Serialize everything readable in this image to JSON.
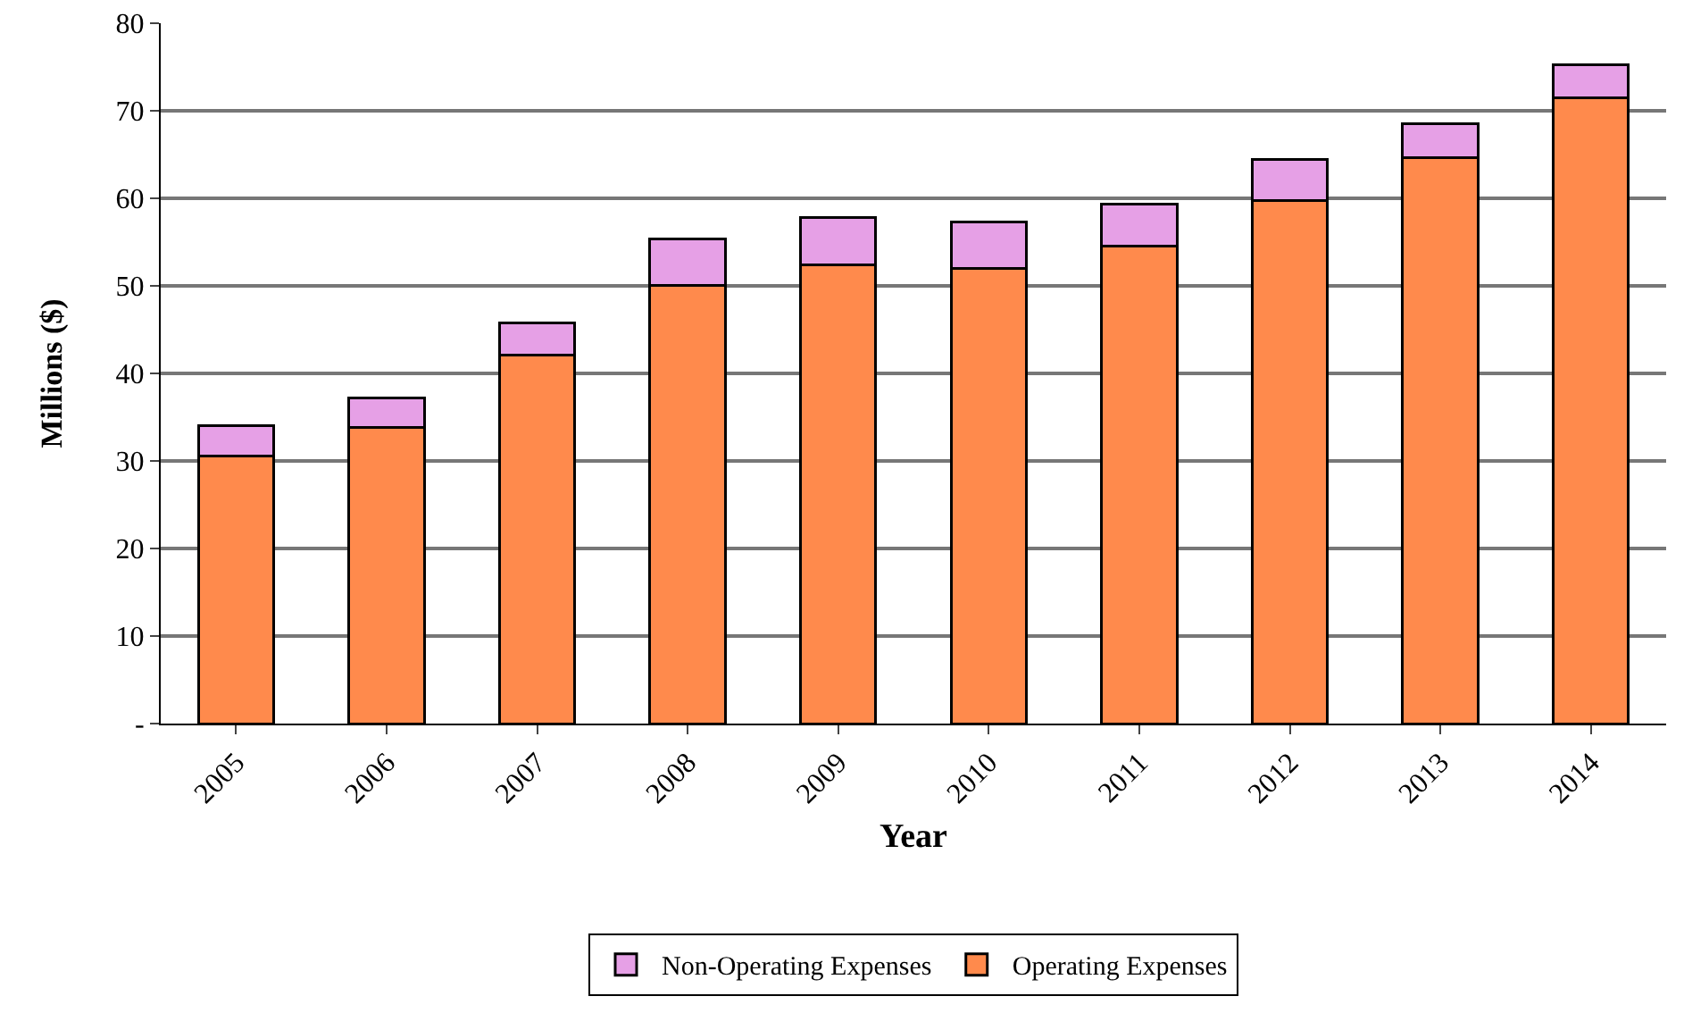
{
  "chart_data": {
    "type": "bar",
    "stacked": true,
    "xlabel": "Year",
    "ylabel": "Millions ($)",
    "categories": [
      "2005",
      "2006",
      "2007",
      "2008",
      "2009",
      "2010",
      "2011",
      "2012",
      "2013",
      "2014"
    ],
    "series": [
      {
        "name": "Operating Expenses",
        "color": "#ff8a4c",
        "values": [
          30.6,
          33.8,
          42.1,
          50.1,
          52.4,
          52.0,
          54.5,
          59.7,
          64.6,
          71.5
        ]
      },
      {
        "name": "Non-Operating Expenses",
        "color": "#e6a0e6",
        "values": [
          3.4,
          3.4,
          3.7,
          5.3,
          5.4,
          5.3,
          4.8,
          4.7,
          3.9,
          3.8
        ]
      }
    ],
    "ylim": [
      0,
      80
    ],
    "yticks": [
      {
        "value": 0,
        "label": "-"
      },
      10,
      20,
      30,
      40,
      50,
      60,
      70,
      80
    ],
    "grid": "y",
    "legend": "bottom"
  }
}
